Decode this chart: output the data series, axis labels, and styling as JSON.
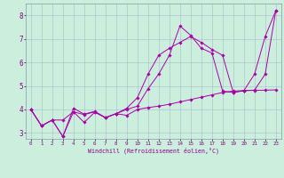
{
  "title": "",
  "xlabel": "Windchill (Refroidissement éolien,°C)",
  "bg_color": "#cceedd",
  "grid_color": "#aabbcc",
  "line_color": "#aa00aa",
  "xlim": [
    -0.5,
    23.5
  ],
  "ylim": [
    2.75,
    8.5
  ],
  "xticks": [
    0,
    1,
    2,
    3,
    4,
    5,
    6,
    7,
    8,
    9,
    10,
    11,
    12,
    13,
    14,
    15,
    16,
    17,
    18,
    19,
    20,
    21,
    22,
    23
  ],
  "yticks": [
    3,
    4,
    5,
    6,
    7,
    8
  ],
  "line1_x": [
    0,
    1,
    2,
    3,
    4,
    5,
    6,
    7,
    8,
    9,
    10,
    11,
    12,
    13,
    14,
    15,
    16,
    17,
    18,
    19,
    20,
    21,
    22,
    23
  ],
  "line1_y": [
    4.0,
    3.3,
    3.55,
    3.55,
    3.9,
    3.78,
    3.9,
    3.65,
    3.82,
    3.75,
    4.0,
    4.08,
    4.14,
    4.22,
    4.32,
    4.42,
    4.52,
    4.62,
    4.72,
    4.78,
    4.8,
    4.81,
    4.82,
    4.83
  ],
  "line2_x": [
    0,
    1,
    2,
    3,
    4,
    5,
    6,
    7,
    8,
    9,
    10,
    11,
    12,
    13,
    14,
    15,
    16,
    17,
    18,
    19,
    20,
    21,
    22,
    23
  ],
  "line2_y": [
    4.0,
    3.3,
    3.55,
    2.85,
    3.9,
    3.45,
    3.88,
    3.65,
    3.82,
    4.05,
    4.5,
    5.5,
    6.3,
    6.6,
    6.85,
    7.1,
    6.85,
    6.55,
    6.3,
    4.72,
    4.8,
    5.5,
    7.1,
    8.2
  ],
  "line3_x": [
    0,
    1,
    2,
    3,
    4,
    5,
    6,
    7,
    8,
    9,
    10,
    11,
    12,
    13,
    14,
    15,
    16,
    17,
    18,
    19,
    20,
    21,
    22,
    23
  ],
  "line3_y": [
    4.0,
    3.3,
    3.55,
    2.85,
    4.05,
    3.8,
    3.92,
    3.65,
    3.82,
    4.0,
    4.14,
    4.88,
    5.5,
    6.3,
    7.55,
    7.15,
    6.6,
    6.4,
    4.78,
    4.72,
    4.8,
    4.82,
    5.5,
    8.2
  ]
}
